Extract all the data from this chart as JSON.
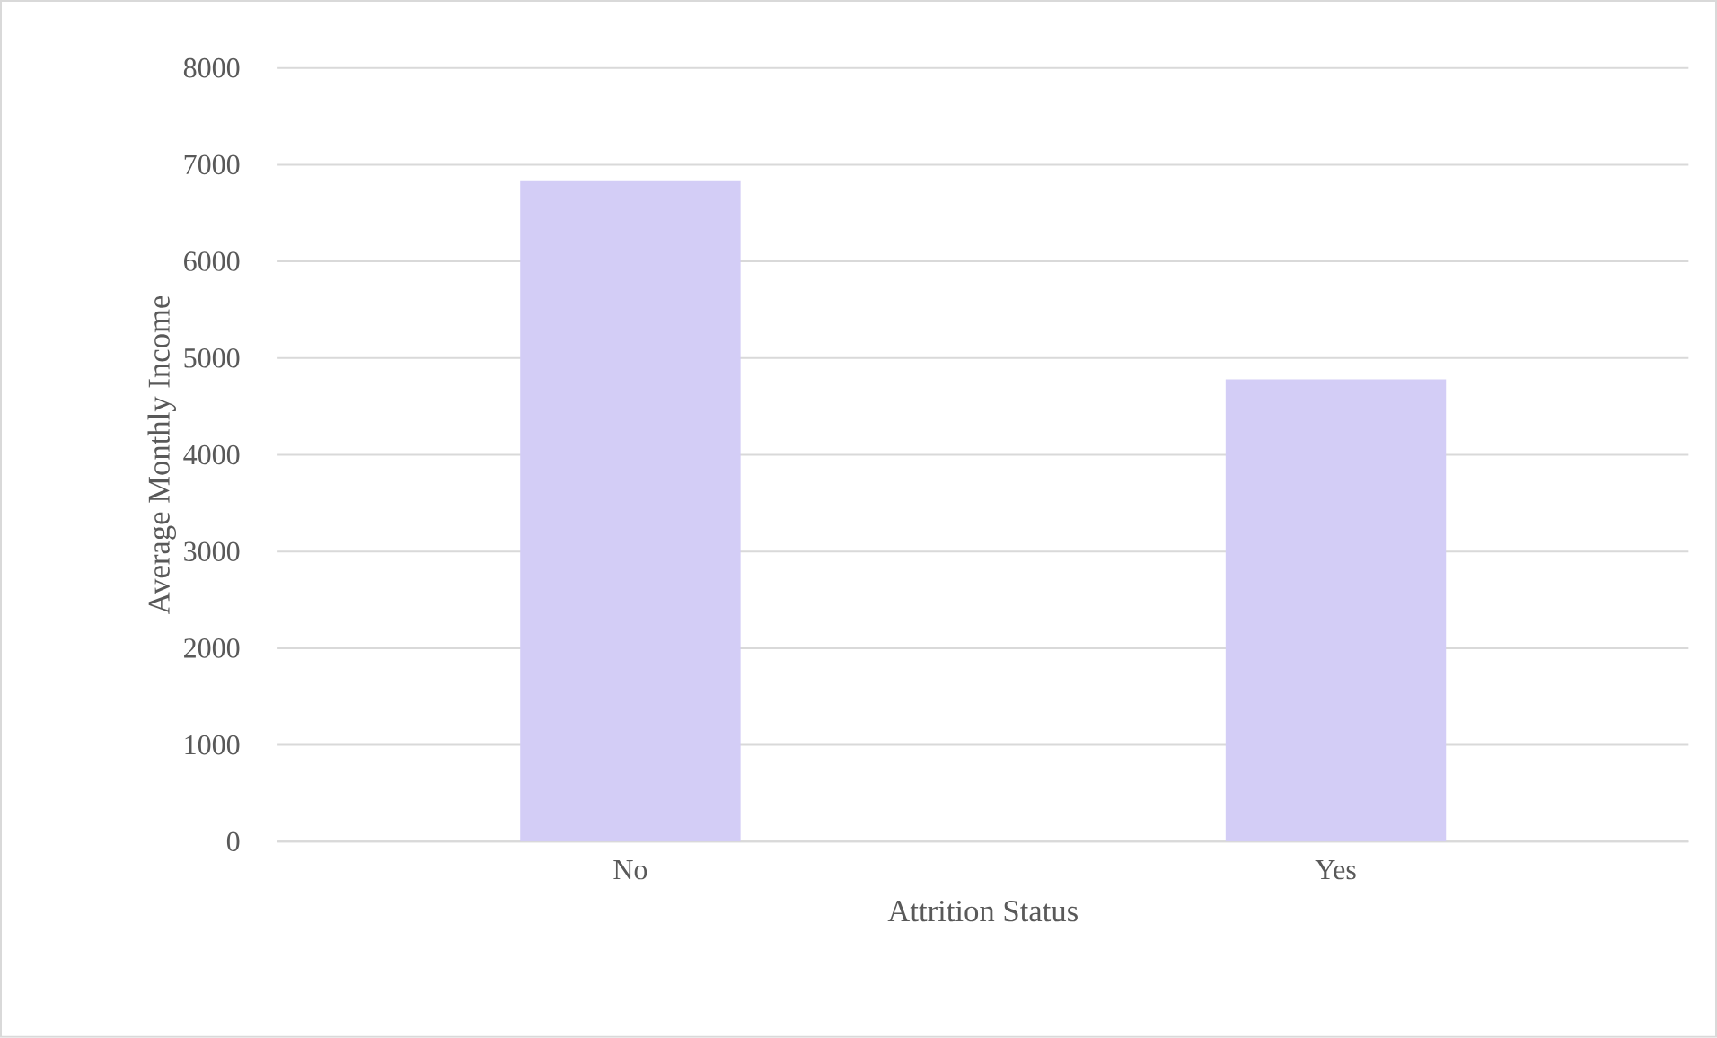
{
  "chart_data": {
    "type": "bar",
    "xlabel": "Attrition Status",
    "ylabel": "Average Monthly Income",
    "categories": [
      "No",
      "Yes"
    ],
    "values": [
      6830,
      4780
    ],
    "color": "#d3cdf6",
    "ylim": [
      0,
      8000
    ],
    "yticks": [
      0,
      1000,
      2000,
      3000,
      4000,
      5000,
      6000,
      7000,
      8000
    ],
    "grid": "y"
  }
}
